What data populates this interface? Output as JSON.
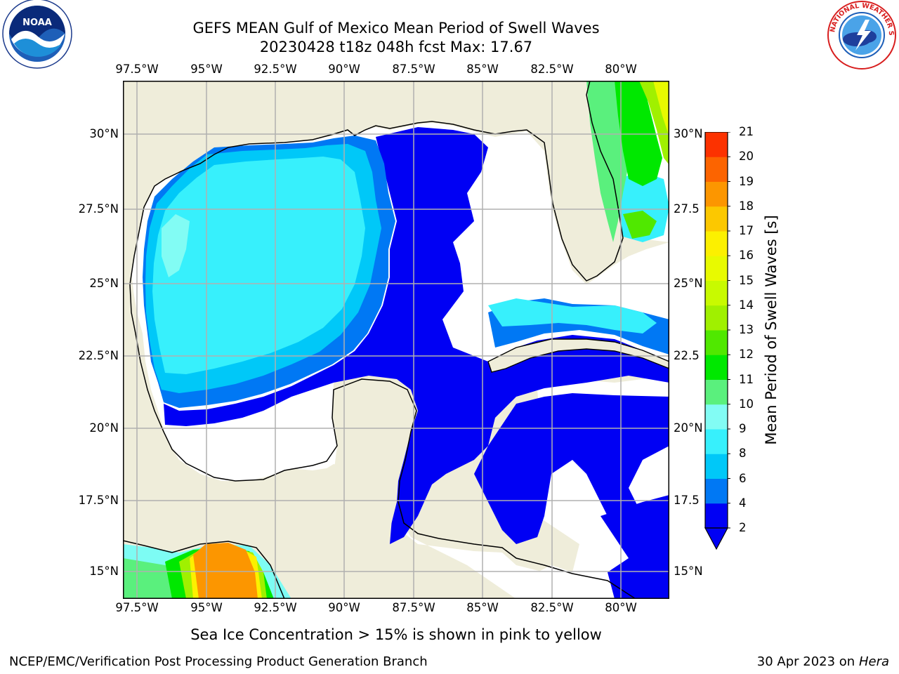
{
  "header": {
    "title_line1": "GEFS MEAN Gulf of Mexico Mean Period of Swell Waves",
    "title_line2": "20230428 t18z 048h fcst   Max: 17.67"
  },
  "logos": {
    "left": "noaa-logo",
    "right": "national-weather-service-logo"
  },
  "map": {
    "lon_labels": [
      "97.5°W",
      "95°W",
      "92.5°W",
      "90°W",
      "87.5°W",
      "85°W",
      "82.5°W",
      "80°W"
    ],
    "lat_labels_left": [
      "30°N",
      "27.5°N",
      "25°N",
      "22.5°N",
      "20°N",
      "17.5°N",
      "15°N"
    ],
    "lat_labels_right": [
      "30°N",
      "27.5",
      "25°N",
      "22.5",
      "20°N",
      "17.5",
      "15°N"
    ],
    "colors": {
      "land": "#efedda",
      "ocean_missing": "#ffffff",
      "coast": "#000000",
      "grid": "#b0b0b0"
    }
  },
  "colorbar": {
    "label": "Mean Period of Swell Waves [s]",
    "ticks": [
      "2",
      "4",
      "6",
      "8",
      "9",
      "10",
      "11",
      "12",
      "13",
      "14",
      "15",
      "16",
      "17",
      "18",
      "19",
      "20",
      "21"
    ],
    "colors": [
      "#0000f4",
      "#0078f4",
      "#00c8f8",
      "#37f0fc",
      "#82fcf4",
      "#5af07d",
      "#00e800",
      "#50e800",
      "#a0f000",
      "#c8fa00",
      "#e8fa00",
      "#fcf000",
      "#fcc800",
      "#fc9600",
      "#fc6400",
      "#fc3200",
      "#f40000"
    ],
    "extend_color": "#0000f4"
  },
  "footer": {
    "note": "Sea Ice Concentration > 15% is shown in pink to yellow",
    "credit": "NCEP/EMC/Verification Post Processing Product Generation Branch",
    "date": "30 Apr 2023 on ",
    "host": "Hera"
  }
}
